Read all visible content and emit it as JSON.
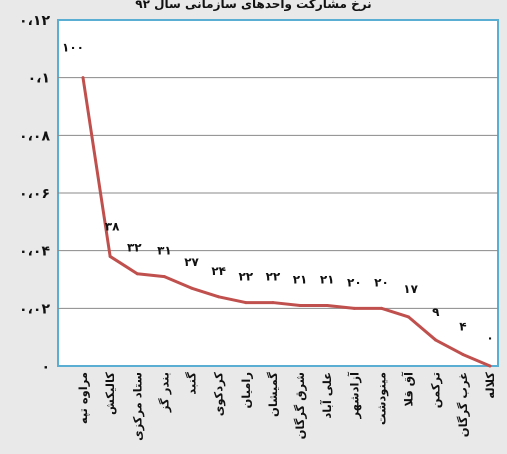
{
  "chart_data": {
    "type": "line",
    "title": "نرخ مشارکت واحدهای سازمانی سال ۹۲",
    "xlabel": "",
    "ylabel": "",
    "ylim": [
      0,
      0.12
    ],
    "yticks": [
      0,
      0.02,
      0.04,
      0.06,
      0.08,
      0.1,
      0.12
    ],
    "ytick_labels": [
      "۰",
      "۰،۰۲",
      "۰،۰۴",
      "۰،۰۶",
      "۰،۰۸",
      "۰،۱",
      "۰،۱۲"
    ],
    "grid": true,
    "legend": "none",
    "line_color": "#c0504d",
    "categories": [
      "مراوه تپه",
      "کالیکش",
      "ستاد مرکزی",
      "بندر گز",
      "گنبد",
      "کردکوی",
      "رامیان",
      "گمیشان",
      "شرق گرگان",
      "علی آباد",
      "آزادشهر",
      "مینودشت",
      "آق قلا",
      "ترکمن",
      "غرب گرگان",
      "کلاله"
    ],
    "values": [
      0.1,
      0.038,
      0.032,
      0.031,
      0.027,
      0.024,
      0.022,
      0.022,
      0.021,
      0.021,
      0.02,
      0.02,
      0.017,
      0.009,
      0.004,
      0.0
    ],
    "data_labels": [
      "۱۰۰",
      "۳۸",
      "۳۲",
      "۳۱",
      "۲۷",
      "۲۴",
      "۲۲",
      "۲۲",
      "۲۱",
      "۲۱",
      "۲۰",
      "۲۰",
      "۱۷",
      "۹",
      "۴",
      "۰"
    ]
  }
}
